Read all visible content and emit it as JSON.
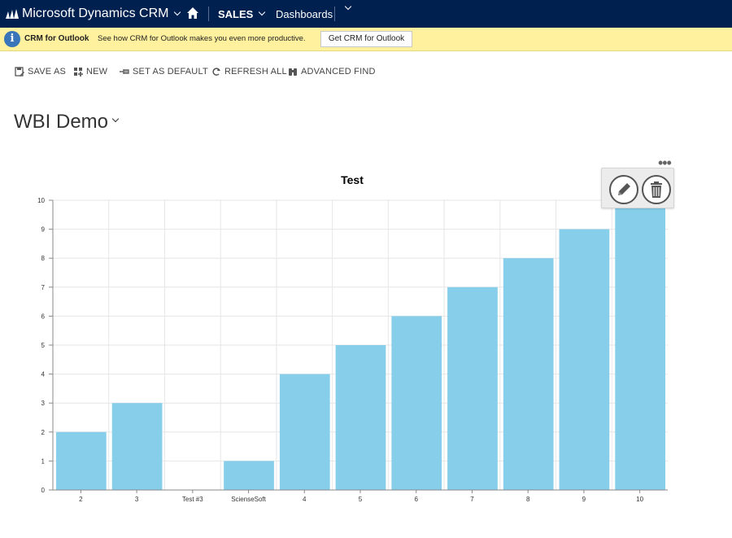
{
  "header": {
    "brand": "Microsoft Dynamics CRM",
    "area": "SALES",
    "section": "Dashboards",
    "icons": [
      "dynamics-logo-icon",
      "chevron-down-icon",
      "home-icon"
    ]
  },
  "infobar": {
    "title": "CRM for Outlook",
    "message": "See how CRM for Outlook makes you even more productive.",
    "button_label": "Get CRM for Outlook"
  },
  "commands": [
    {
      "label": "SAVE AS",
      "icon": "save-as-icon"
    },
    {
      "label": "NEW",
      "icon": "new-icon"
    },
    {
      "label": "SET AS DEFAULT",
      "icon": "pin-icon"
    },
    {
      "label": "REFRESH ALL",
      "icon": "refresh-icon"
    },
    {
      "label": "ADVANCED FIND",
      "icon": "binoculars-icon"
    }
  ],
  "dashboard": {
    "title": "WBI Demo"
  },
  "chart_actions": {
    "more": "•••",
    "icons": [
      "pencil-icon",
      "trash-icon"
    ]
  },
  "chart_data": {
    "type": "bar",
    "title": "Test",
    "xlabel": "",
    "ylabel": "",
    "categories": [
      "2",
      "3",
      "Test #3",
      "ScienseSoft",
      "4",
      "5",
      "6",
      "7",
      "8",
      "9",
      "10"
    ],
    "values": [
      2,
      3,
      0,
      1,
      4,
      5,
      6,
      7,
      8,
      9,
      10
    ],
    "ylim": [
      0,
      10
    ],
    "yticks": [
      "0",
      "1",
      "2",
      "3",
      "4",
      "5",
      "6",
      "7",
      "8",
      "9",
      "10"
    ],
    "grid": true,
    "colors": {
      "bar": "#87ceeb",
      "grid": "#e6e6e6",
      "axis": "#888888"
    }
  },
  "colors": {
    "nav_bg": "#002050",
    "infobar_bg": "#fff19d",
    "info_icon": "#3b75b9"
  }
}
